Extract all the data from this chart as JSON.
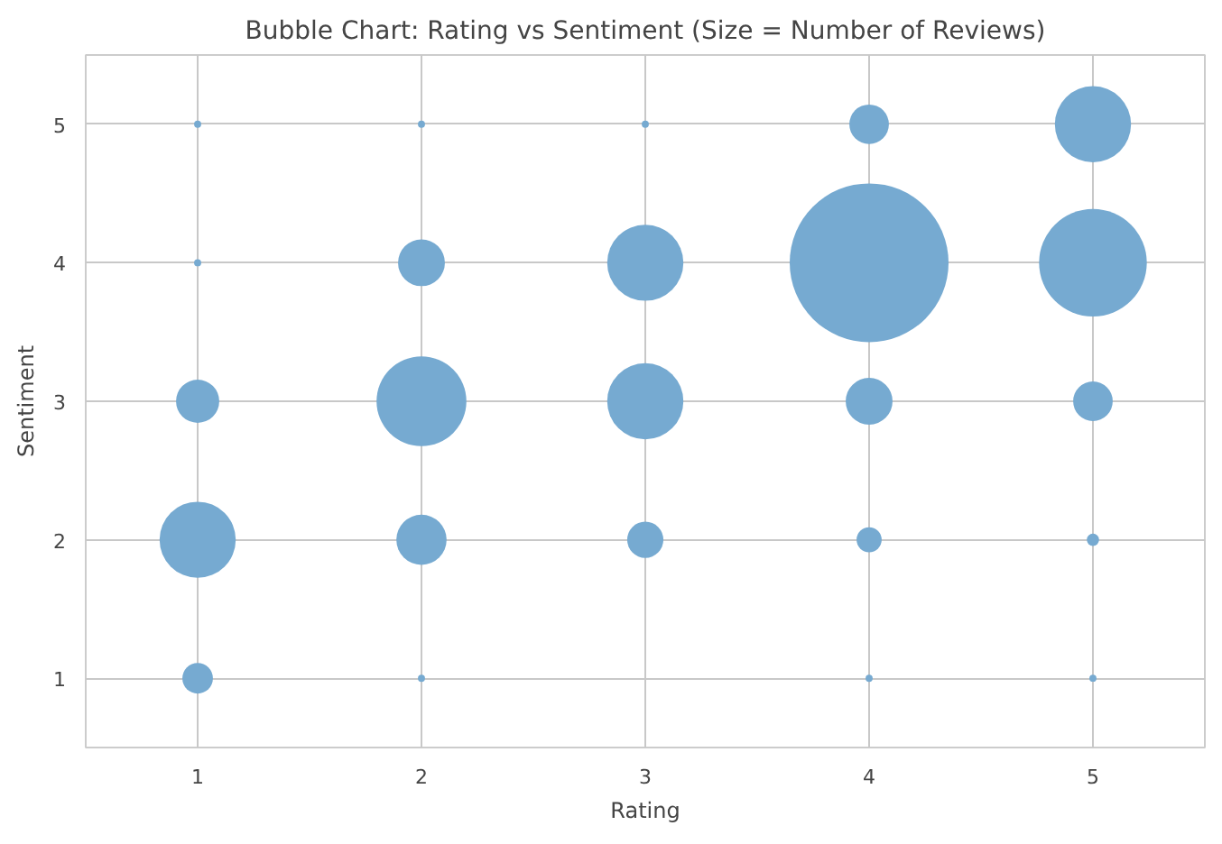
{
  "chart_data": {
    "type": "bubble",
    "title": "Bubble Chart: Rating vs Sentiment (Size = Number of Reviews)",
    "xlabel": "Rating",
    "ylabel": "Sentiment",
    "x": [
      1,
      1,
      1,
      1,
      1,
      2,
      2,
      2,
      2,
      2,
      3,
      3,
      3,
      3,
      4,
      4,
      4,
      4,
      4,
      5,
      5,
      5,
      5,
      5
    ],
    "values": [
      1,
      2,
      3,
      4,
      5,
      1,
      2,
      3,
      4,
      5,
      2,
      3,
      4,
      5,
      1,
      2,
      3,
      4,
      5,
      1,
      2,
      3,
      4,
      5
    ],
    "sizes": [
      0.037,
      0.23,
      0.074,
      0.002,
      0.002,
      0.002,
      0.1,
      0.32,
      0.087,
      0.002,
      0.052,
      0.23,
      0.23,
      0.002,
      0.002,
      0.025,
      0.087,
      1,
      0.062,
      0.002,
      0.006,
      0.062,
      0.46,
      0.23
    ],
    "color": "#76aad1",
    "xlim": [
      0.5,
      5.5
    ],
    "ylim": [
      0.5,
      5.5
    ],
    "xticks": [
      1,
      2,
      3,
      4,
      5
    ],
    "yticks": [
      1,
      2,
      3,
      4,
      5
    ],
    "grid": true
  }
}
